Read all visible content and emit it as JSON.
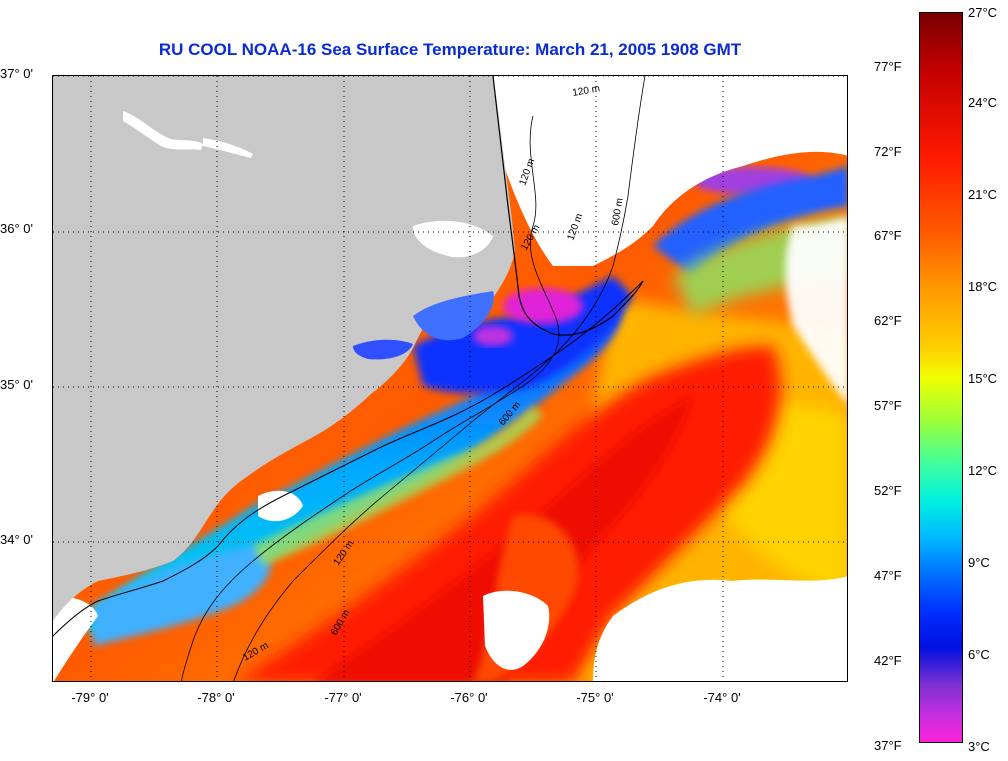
{
  "title": "RU COOL  NOAA-16  Sea Surface Temperature:  March 21, 2005 1908 GMT",
  "lat_labels": [
    "37° 0'",
    "36° 0'",
    "35° 0'",
    "34° 0'"
  ],
  "lon_labels": [
    "-79° 0'",
    "-78° 0'",
    "-77° 0'",
    "-76° 0'",
    "-75° 0'",
    "-74° 0'"
  ],
  "isobath_labels": [
    "120 m",
    "120 m",
    "120 m",
    "600 m",
    "120 m",
    "600 m",
    "120 m",
    "600 m",
    "120 m"
  ],
  "colorbar": {
    "celsius": [
      "27°C",
      "24°C",
      "21°C",
      "18°C",
      "15°C",
      "12°C",
      "9°C",
      "6°C",
      "3°C"
    ],
    "fahrenheit": [
      "77°F",
      "72°F",
      "67°F",
      "62°F",
      "57°F",
      "52°F",
      "47°F",
      "42°F",
      "37°F"
    ]
  },
  "colors": {
    "title": "#0a2bd3",
    "land": "#c8c8c8",
    "cloud": "#ffffff"
  }
}
